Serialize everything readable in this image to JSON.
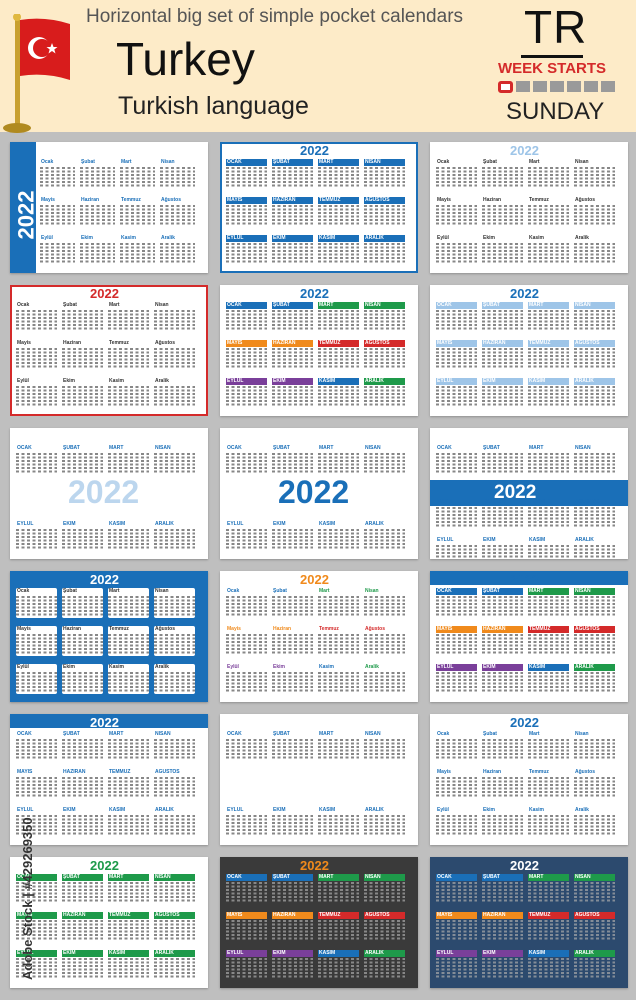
{
  "header": {
    "title": "Horizontal big set of simple pocket calendars",
    "country": "Turkey",
    "language": "Turkish language",
    "code": "TR",
    "week_starts": "WEEK STARTS",
    "start_day": "SUNDAY"
  },
  "year": "2022",
  "months": [
    "Ocak",
    "Şubat",
    "Mart",
    "Nisan",
    "Mayis",
    "Haziran",
    "Temmuz",
    "Ağustos",
    "Eylül",
    "Ekim",
    "Kasim",
    "Aralik"
  ],
  "months_upper": [
    "OCAK",
    "ŞUBAT",
    "MART",
    "NISAN",
    "MAYIS",
    "HAZIRAN",
    "TEMMUZ",
    "AĞUSTOS",
    "EYLÜL",
    "EKIM",
    "KASIM",
    "ARALIK"
  ],
  "watermark": "Adobe Stock | #429269350",
  "colors": {
    "blue": "#1a6fb8",
    "red": "#d42a2a",
    "green": "#1e9a4a",
    "orange": "#f08a1c",
    "purple": "#7a3f9a",
    "dark": "#3a3a3a",
    "navy": "#2c4a6e"
  }
}
